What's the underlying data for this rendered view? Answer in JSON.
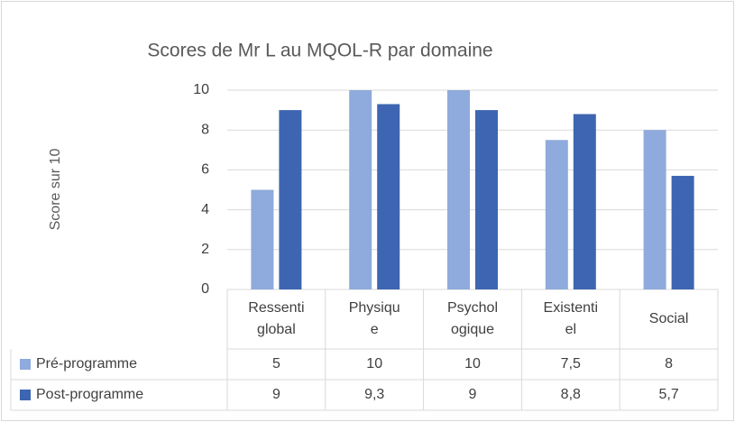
{
  "chart_data": {
    "type": "bar",
    "title": "Scores de Mr L au MQOL-R  par domaine",
    "y_label": "Score sur 10",
    "categories": [
      "Ressenti global",
      "Physique",
      "Psychologique",
      "Existentiel",
      "Social"
    ],
    "series": [
      {
        "name": "Pré-programme",
        "color": "#8faadc",
        "values": [
          5,
          10,
          10,
          7.5,
          8
        ],
        "value_labels": [
          "5",
          "10",
          "10",
          "7,5",
          "8"
        ]
      },
      {
        "name": "Post-programme",
        "color": "#3d65b1",
        "values": [
          9,
          9.3,
          9,
          8.8,
          5.7
        ],
        "value_labels": [
          "9",
          "9,3",
          "9",
          "8,8",
          "5,7"
        ]
      }
    ],
    "ylim": [
      0,
      10
    ],
    "yticks": [
      0,
      2,
      4,
      6,
      8,
      10
    ],
    "grid": true,
    "data_table": true
  }
}
